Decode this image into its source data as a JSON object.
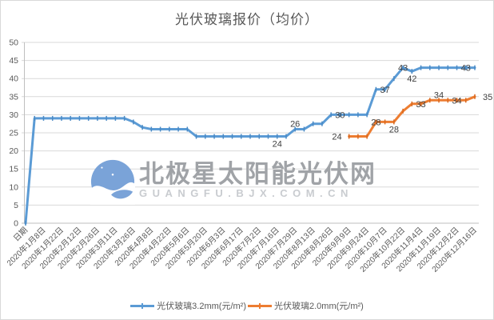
{
  "title": "光伏玻璃报价（均价）",
  "watermark": {
    "text": "北极星太阳能光伏网",
    "subtext": "GUANGFU.BJX.COM.CN",
    "logo_color": "#7aa3d8"
  },
  "legend": [
    {
      "label": "光伏玻璃3.2mm(元/m²)",
      "color": "#5B9BD5"
    },
    {
      "label": "光伏玻璃2.0mm(元/m²)",
      "color": "#ED7D31"
    }
  ],
  "colors": {
    "grid": "#d9d9d9",
    "axis_line": "#bfbfbf",
    "axis_text": "#595959",
    "data_label_text": "#404040",
    "title_text": "#595959"
  },
  "chart_data": {
    "type": "line",
    "title": "光伏玻璃报价（均价）",
    "xlabel": "",
    "ylabel": "",
    "ylim": [
      0,
      50
    ],
    "ytick_interval": 5,
    "yticks": [
      0,
      5,
      10,
      15,
      20,
      25,
      30,
      35,
      40,
      45,
      50
    ],
    "grid": true,
    "legend_position": "bottom",
    "x_labels": [
      "日期",
      "2020年1月8日",
      "2020年1月22日",
      "2020年2月12日",
      "2020年2月26日",
      "2020年3月11日",
      "2020年3月26日",
      "2020年4月8日",
      "2020年4月22日",
      "2020年5月6日",
      "2020年5月20日",
      "2020年6月3日",
      "2020年6月17日",
      "2020年7月2日",
      "2020年7月16日",
      "2020年7月29日",
      "2020年8月13日",
      "2020年8月26日",
      "2020年9月9日",
      "2020年9月24日",
      "2020年10月7日",
      "2020年10月22日",
      "2020年11月4日",
      "2020年11月19日",
      "2020年12月2日",
      "2020年12月16日"
    ],
    "x_label_every_n_points": 2,
    "series": [
      {
        "name": "光伏玻璃3.2mm(元/m²)",
        "color": "#5B9BD5",
        "marker_color": "#4a8ac5",
        "values": [
          0,
          29,
          29,
          29,
          29,
          29,
          29,
          29,
          29,
          29,
          29,
          29,
          28,
          26.5,
          26,
          26,
          26,
          26,
          26,
          24,
          24,
          24,
          24,
          24,
          24,
          24,
          24,
          24,
          24,
          24,
          26,
          26,
          27.5,
          27.5,
          30,
          30,
          30,
          30,
          30,
          37,
          37,
          40,
          43,
          42,
          43,
          43,
          43,
          43,
          43,
          43,
          43
        ]
      },
      {
        "name": "光伏玻璃2.0mm(元/m²)",
        "color": "#ED7D31",
        "marker_color": "#d9681e",
        "values": [
          null,
          null,
          null,
          null,
          null,
          null,
          null,
          null,
          null,
          null,
          null,
          null,
          null,
          null,
          null,
          null,
          null,
          null,
          null,
          null,
          null,
          null,
          null,
          null,
          null,
          null,
          null,
          null,
          null,
          null,
          null,
          null,
          null,
          null,
          null,
          null,
          24,
          24,
          24,
          28,
          28,
          28,
          31,
          33,
          33,
          34,
          34,
          34,
          34,
          34,
          35
        ]
      }
    ],
    "data_labels": [
      {
        "series": 0,
        "index": 28,
        "text": "24",
        "placement": "below"
      },
      {
        "series": 0,
        "index": 30,
        "text": "26",
        "placement": "above"
      },
      {
        "series": 0,
        "index": 35,
        "text": "30",
        "placement": "center"
      },
      {
        "series": 0,
        "index": 40,
        "text": "37",
        "placement": "center"
      },
      {
        "series": 0,
        "index": 42,
        "text": "43",
        "placement": "center"
      },
      {
        "series": 0,
        "index": 43,
        "text": "42",
        "placement": "below"
      },
      {
        "series": 0,
        "index": 49,
        "text": "43",
        "placement": "center"
      },
      {
        "series": 1,
        "index": 36,
        "text": "24",
        "placement": "left"
      },
      {
        "series": 1,
        "index": 39,
        "text": "28",
        "placement": "center"
      },
      {
        "series": 1,
        "index": 41,
        "text": "28",
        "placement": "below"
      },
      {
        "series": 1,
        "index": 44,
        "text": "33",
        "placement": "center"
      },
      {
        "series": 1,
        "index": 46,
        "text": "34",
        "placement": "above"
      },
      {
        "series": 1,
        "index": 48,
        "text": "34",
        "placement": "center"
      },
      {
        "series": 1,
        "index": 50,
        "text": "35",
        "placement": "right"
      }
    ]
  }
}
